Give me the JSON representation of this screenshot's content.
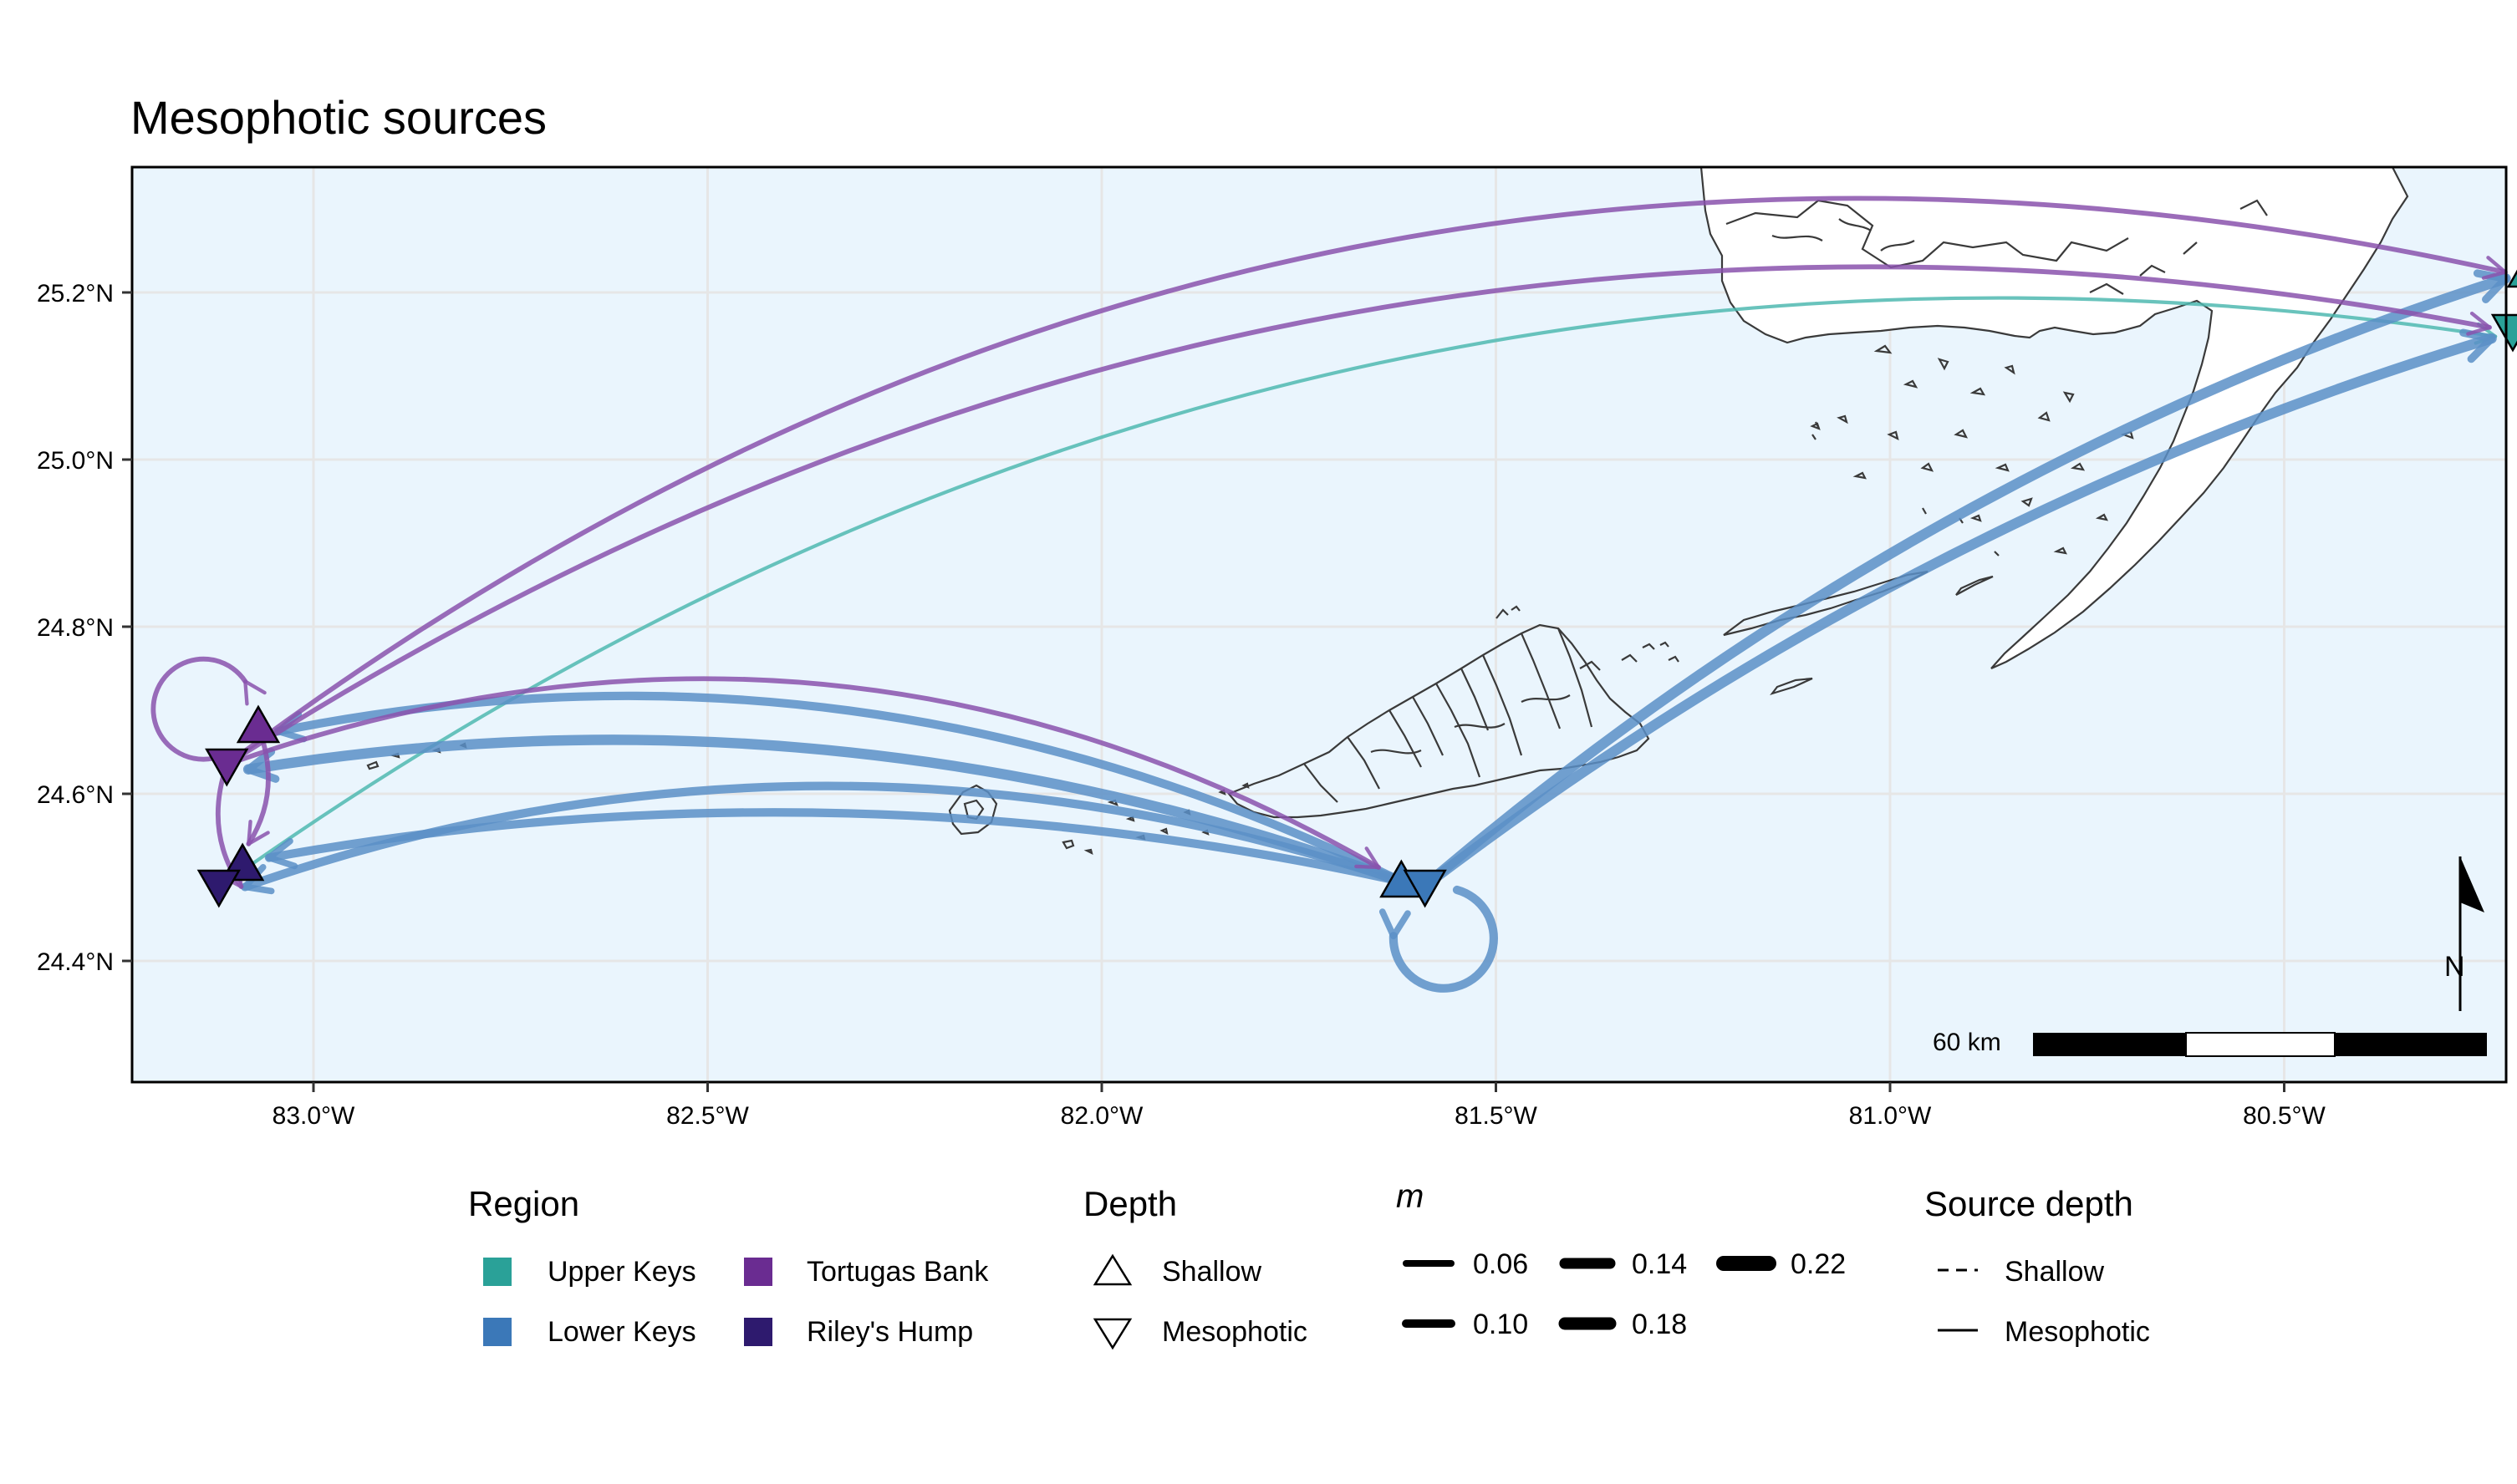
{
  "title": "Mesophotic sources",
  "axes": {
    "x_ticks": [
      "83.0°W",
      "82.5°W",
      "82.0°W",
      "81.5°W",
      "81.0°W",
      "80.5°W"
    ],
    "y_ticks": [
      "25.2°N",
      "25.0°N",
      "24.8°N",
      "24.6°N",
      "24.4°N"
    ]
  },
  "scale_bar": {
    "label": "60 km"
  },
  "north_arrow": {
    "label": "N"
  },
  "colors": {
    "upper_keys": "#2aa198",
    "lower_keys": "#3b78b8",
    "tortugas_bank": "#6a2c91",
    "rileys_hump": "#2e1a6e",
    "sea": "#eaf5fd",
    "land": "#ffffff"
  },
  "legend": {
    "region": {
      "title": "Region",
      "items": [
        {
          "label": "Upper Keys",
          "color": "#2aa198"
        },
        {
          "label": "Tortugas Bank",
          "color": "#6a2c91"
        },
        {
          "label": "Lower Keys",
          "color": "#3b78b8"
        },
        {
          "label": "Riley's Hump",
          "color": "#2e1a6e"
        }
      ]
    },
    "depth": {
      "title": "Depth",
      "items": [
        {
          "label": "Shallow",
          "symbol": "triangle-up-icon"
        },
        {
          "label": "Mesophotic",
          "symbol": "triangle-down-icon"
        }
      ]
    },
    "m": {
      "title": "m",
      "items": [
        "0.06",
        "0.14",
        "0.22",
        "0.10",
        "0.18"
      ]
    },
    "source_depth": {
      "title": "Source depth",
      "items": [
        {
          "label": "Shallow",
          "linetype": "dashed"
        },
        {
          "label": "Mesophotic",
          "linetype": "solid"
        }
      ]
    }
  },
  "chart_data": {
    "type": "map-flow",
    "title": "Mesophotic sources",
    "xlim": [
      -83.25,
      -80.1
    ],
    "ylim": [
      24.25,
      25.35
    ],
    "sites": [
      {
        "name": "Upper Keys",
        "depth": "Shallow",
        "lon": -80.19,
        "lat": 25.225
      },
      {
        "name": "Upper Keys",
        "depth": "Mesophotic",
        "lon": -80.21,
        "lat": 25.155
      },
      {
        "name": "Tortugas Bank",
        "depth": "Shallow",
        "lon": -83.07,
        "lat": 24.68
      },
      {
        "name": "Tortugas Bank",
        "depth": "Mesophotic",
        "lon": -83.11,
        "lat": 24.635
      },
      {
        "name": "Riley's Hump",
        "depth": "Shallow",
        "lon": -83.09,
        "lat": 24.515
      },
      {
        "name": "Riley's Hump",
        "depth": "Mesophotic",
        "lon": -83.12,
        "lat": 24.49
      },
      {
        "name": "Lower Keys",
        "depth": "Shallow",
        "lon": -81.62,
        "lat": 24.495
      },
      {
        "name": "Lower Keys",
        "depth": "Mesophotic",
        "lon": -81.59,
        "lat": 24.49
      }
    ],
    "flows": [
      {
        "from": "Tortugas Bank",
        "to": "Upper Keys (Shallow)",
        "m": 0.06,
        "source_depth": "Mesophotic"
      },
      {
        "from": "Tortugas Bank",
        "to": "Upper Keys (Mesophotic)",
        "m": 0.06,
        "source_depth": "Mesophotic"
      },
      {
        "from": "Tortugas Bank",
        "to": "Lower Keys",
        "m": 0.06,
        "source_depth": "Mesophotic"
      },
      {
        "from": "Tortugas Bank",
        "to": "Tortugas Bank",
        "m": 0.06,
        "source_depth": "Mesophotic"
      },
      {
        "from": "Tortugas Bank",
        "to": "Riley's Hump",
        "m": 0.06,
        "source_depth": "Mesophotic"
      },
      {
        "from": "Lower Keys",
        "to": "Upper Keys (Shallow)",
        "m": 0.18,
        "source_depth": "Mesophotic"
      },
      {
        "from": "Lower Keys",
        "to": "Upper Keys (Mesophotic)",
        "m": 0.18,
        "source_depth": "Mesophotic"
      },
      {
        "from": "Lower Keys",
        "to": "Tortugas Bank (Shallow)",
        "m": 0.14,
        "source_depth": "Mesophotic"
      },
      {
        "from": "Lower Keys",
        "to": "Tortugas Bank (Mesophotic)",
        "m": 0.18,
        "source_depth": "Mesophotic"
      },
      {
        "from": "Lower Keys",
        "to": "Riley's Hump (Shallow)",
        "m": 0.14,
        "source_depth": "Mesophotic"
      },
      {
        "from": "Lower Keys",
        "to": "Riley's Hump (Mesophotic)",
        "m": 0.14,
        "source_depth": "Mesophotic"
      },
      {
        "from": "Lower Keys",
        "to": "Lower Keys",
        "m": 0.14,
        "source_depth": "Mesophotic"
      },
      {
        "from": "Riley's Hump",
        "to": "Upper Keys (Mesophotic)",
        "m": 0.03,
        "source_depth": "Mesophotic"
      },
      {
        "from": "Upper Keys",
        "to": "Upper Keys",
        "m": 0.06,
        "source_depth": "Mesophotic"
      }
    ]
  }
}
